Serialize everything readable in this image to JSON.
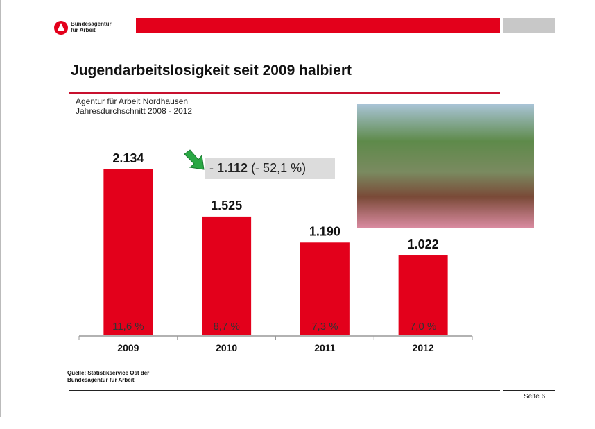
{
  "header": {
    "logo_text": "Bundesagentur\nfür Arbeit",
    "brand_color": "#e3001b"
  },
  "title": "Jugendarbeitslosigkeit seit 2009 halbiert",
  "subtitle1": "Agentur für Arbeit Nordhausen",
  "subtitle2": "Jahresdurchschnitt  2008 - 2012",
  "callout": {
    "prefix": "- ",
    "value": "1.112",
    "suffix": " (- 52,1 %)"
  },
  "photo": "group of young people outdoors",
  "source": "Quelle: Statistikservice Ost der\nBundesagentur für Arbeit",
  "page": "Seite 6",
  "chart_data": {
    "type": "bar",
    "categories": [
      "2009",
      "2010",
      "2011",
      "2012"
    ],
    "values": [
      2134,
      1525,
      1190,
      1022
    ],
    "value_labels": [
      "2.134",
      "1.525",
      "1.190",
      "1.022"
    ],
    "rate_labels": [
      "11,6 %",
      "8,7 %",
      "7,3 %",
      "7,0 %"
    ],
    "color": "#e3001b",
    "ylim": [
      0,
      2134
    ],
    "grid": false
  }
}
